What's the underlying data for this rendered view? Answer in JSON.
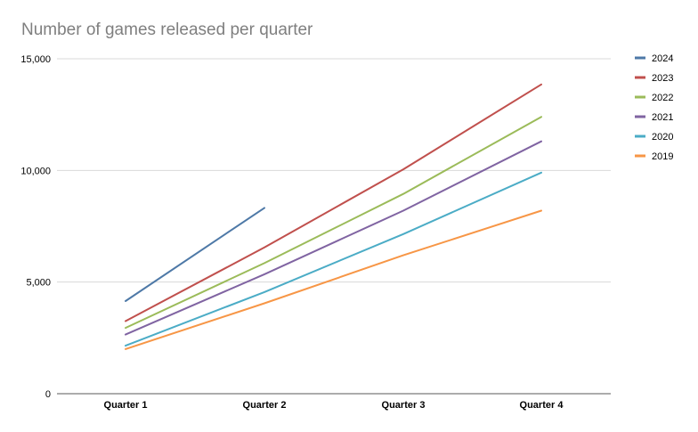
{
  "chart_data": {
    "type": "line",
    "title": "Number of games released per quarter",
    "xlabel": "",
    "ylabel": "",
    "categories": [
      "Quarter 1",
      "Quarter 2",
      "Quarter 3",
      "Quarter 4"
    ],
    "ylim": [
      0,
      15000
    ],
    "yticks": [
      0,
      5000,
      10000,
      15000
    ],
    "ytick_labels": [
      "0",
      "5,000",
      "10,000",
      "15,000"
    ],
    "grid": true,
    "legend_position": "right",
    "series": [
      {
        "name": "2024",
        "color": "#4e79a7",
        "values": [
          4150,
          8320,
          null,
          null
        ]
      },
      {
        "name": "2023",
        "color": "#c0504d",
        "values": [
          3250,
          6550,
          10050,
          13850
        ]
      },
      {
        "name": "2022",
        "color": "#9bbb59",
        "values": [
          2950,
          5850,
          8950,
          12400
        ]
      },
      {
        "name": "2021",
        "color": "#8064a2",
        "values": [
          2650,
          5350,
          8200,
          11300
        ]
      },
      {
        "name": "2020",
        "color": "#4bacc6",
        "values": [
          2150,
          4550,
          7150,
          9900
        ]
      },
      {
        "name": "2019",
        "color": "#f79646",
        "values": [
          2000,
          4050,
          6200,
          8200
        ]
      }
    ]
  }
}
